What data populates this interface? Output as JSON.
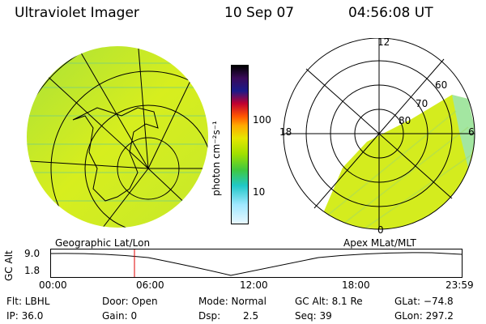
{
  "header": {
    "instrument": "Ultraviolet Imager",
    "date": "10 Sep 07",
    "time": "04:56:08 UT"
  },
  "colorbar": {
    "unit_label": "photon cm⁻²s⁻¹",
    "ticks": [
      "100",
      "10"
    ],
    "colors": [
      "#000000",
      "#3a0a5a",
      "#1a1a8a",
      "#c00030",
      "#ff5500",
      "#ffaa00",
      "#e6e600",
      "#a0e000",
      "#40c840",
      "#20c8c8",
      "#a0e8ff",
      "#e8f8ff"
    ]
  },
  "left_panel": {
    "caption": "Geographic Lat/Lon"
  },
  "right_panel": {
    "caption": "Apex MLat/MLT",
    "mlt_labels": [
      "12",
      "18",
      "6",
      "0"
    ],
    "mlat_labels": [
      "60",
      "70",
      "80"
    ]
  },
  "timeline": {
    "ylabel": "GC Alt",
    "ytick_top": "9.0",
    "ytick_bottom": "1.8",
    "xticks": [
      "00:00",
      "06:00",
      "12:00",
      "18:00",
      "23:59"
    ]
  },
  "status": {
    "flt": "Flt: LBHL",
    "ip": "IP: 36.0",
    "door": "Door: Open",
    "gain": "Gain:  0",
    "mode": "Mode: Normal",
    "dsp_label": "Dsp:",
    "dsp_value": "2.5",
    "gc_alt": "GC Alt: 8.1 Re",
    "seq": "Seq: 39",
    "glat": "GLat: −74.8",
    "glon": "GLon: 297.2"
  }
}
